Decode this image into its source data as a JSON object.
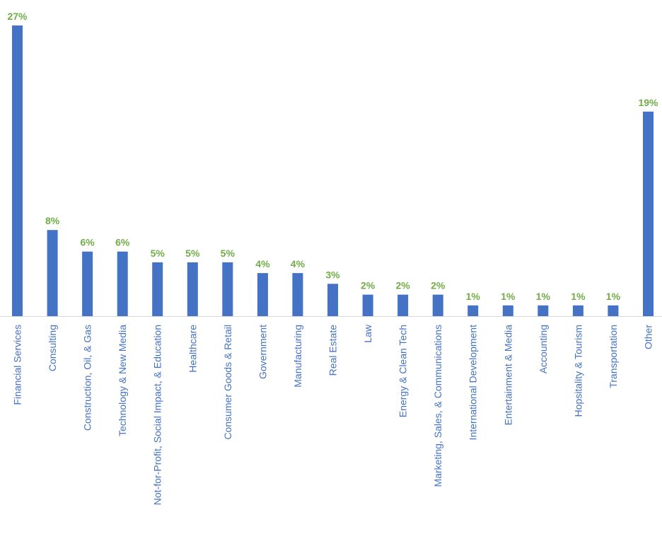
{
  "chart_data": {
    "type": "bar",
    "title": "",
    "xlabel": "",
    "ylabel": "",
    "ylim": [
      0,
      27
    ],
    "grid": false,
    "legend": "none",
    "categories": [
      "Financial Services",
      "Consulting",
      "Construction, Oil, & Gas",
      "Technology & New Media",
      "Not-for-Profit, Social Impact, & Education",
      "Healthcare",
      "Consumer Goods & Retail",
      "Government",
      "Manufacturing",
      "Real Estate",
      "Law",
      "Energy & Clean Tech",
      "Marketing, Sales, & Communications",
      "International Development",
      "Entertainment & Media",
      "Accounting",
      "Hopsitality & Tourism",
      "Transportation",
      "Other"
    ],
    "values": [
      27,
      8,
      6,
      6,
      5,
      5,
      5,
      4,
      4,
      3,
      2,
      2,
      2,
      1,
      1,
      1,
      1,
      1,
      19
    ],
    "data_labels": [
      "27%",
      "8%",
      "6%",
      "6%",
      "5%",
      "5%",
      "5%",
      "4%",
      "4%",
      "3%",
      "2%",
      "2%",
      "2%",
      "1%",
      "1%",
      "1%",
      "1%",
      "1%",
      "19%"
    ],
    "colors": {
      "bar": "#4472c4",
      "data_label": "#70ad47",
      "tick_label": "#4472c4",
      "axis": "#d9d9d9"
    }
  }
}
